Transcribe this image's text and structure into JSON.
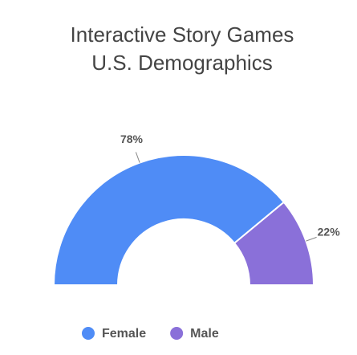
{
  "chart_data": {
    "type": "semi-donut",
    "title": [
      "Interactive Story Games",
      "U.S. Demographics"
    ],
    "categories": [
      "Female",
      "Male"
    ],
    "values": [
      78,
      22
    ],
    "value_labels": [
      "78%",
      "22%"
    ],
    "colors": [
      "#4f8cf6",
      "#8a70d9"
    ],
    "legend": "bottom"
  }
}
